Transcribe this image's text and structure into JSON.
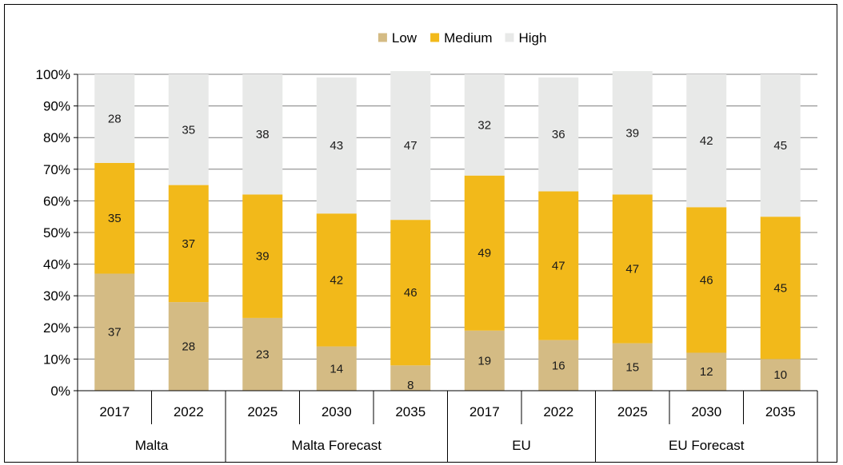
{
  "chart_data": {
    "type": "bar",
    "stacked": true,
    "groups": [
      {
        "name": "Malta",
        "categories": [
          "2017",
          "2022"
        ]
      },
      {
        "name": "Malta Forecast",
        "categories": [
          "2025",
          "2030",
          "2035"
        ]
      },
      {
        "name": "EU",
        "categories": [
          "2017",
          "2022"
        ]
      },
      {
        "name": "EU Forecast",
        "categories": [
          "2025",
          "2030",
          "2035"
        ]
      }
    ],
    "categories": [
      "2017",
      "2022",
      "2025",
      "2030",
      "2035",
      "2017",
      "2022",
      "2025",
      "2030",
      "2035"
    ],
    "series": [
      {
        "name": "Low",
        "color": "#d4bb84",
        "values": [
          37,
          28,
          23,
          14,
          8,
          19,
          16,
          15,
          12,
          10
        ]
      },
      {
        "name": "Medium",
        "color": "#f2b91a",
        "values": [
          35,
          37,
          39,
          42,
          46,
          49,
          47,
          47,
          46,
          45
        ]
      },
      {
        "name": "High",
        "color": "#e8e9e8",
        "values": [
          28,
          35,
          38,
          43,
          47,
          32,
          36,
          39,
          42,
          45
        ]
      }
    ],
    "yticks": [
      "0%",
      "10%",
      "20%",
      "30%",
      "40%",
      "50%",
      "60%",
      "70%",
      "80%",
      "90%",
      "100%"
    ],
    "ylim": [
      0,
      100
    ],
    "grid": true,
    "legend_position": "top-center",
    "title": "",
    "xlabel": "",
    "ylabel": ""
  }
}
